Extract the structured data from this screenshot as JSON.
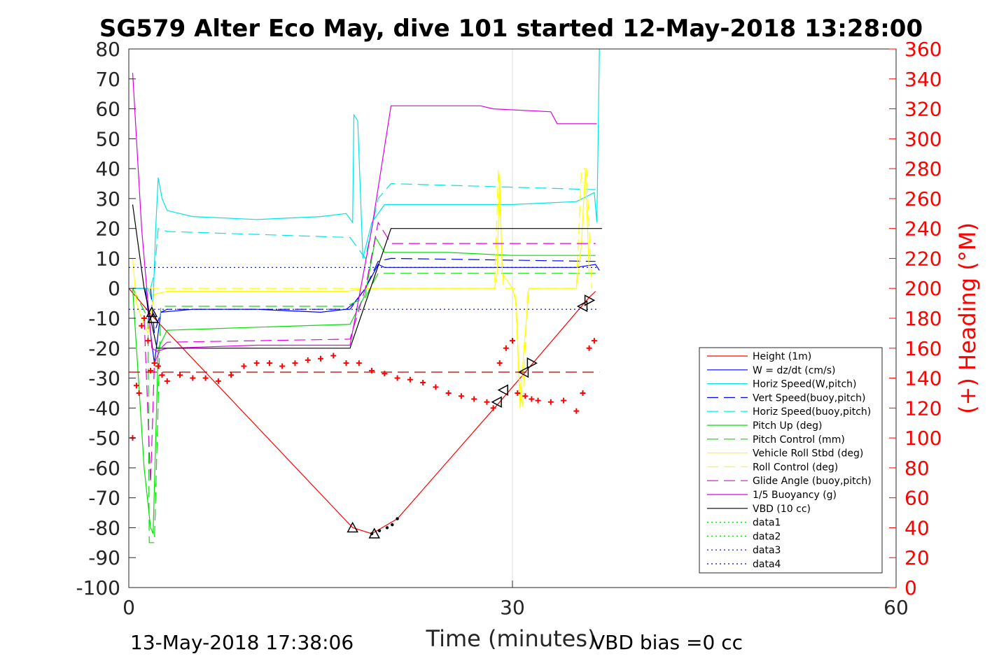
{
  "chart_data": {
    "type": "line",
    "title": "SG579 Alter Eco May, dive 101 started 12-May-2018 13:28:00",
    "xlabel": "Time (minutes)",
    "ylabel": "",
    "y2label": "(+) Heading (°M)",
    "xlim": [
      0,
      60
    ],
    "ylim": [
      -100,
      80
    ],
    "y2lim": [
      0,
      360
    ],
    "xticks": [
      "0",
      "30",
      "60"
    ],
    "yticks": [
      "80",
      "70",
      "60",
      "50",
      "40",
      "30",
      "20",
      "10",
      "0",
      "-10",
      "-20",
      "-30",
      "-40",
      "-50",
      "-60",
      "-70",
      "-80",
      "-90",
      "-100"
    ],
    "y2ticks": [
      "360",
      "340",
      "320",
      "300",
      "280",
      "260",
      "240",
      "220",
      "200",
      "180",
      "160",
      "140",
      "120",
      "100",
      "80",
      "60",
      "40",
      "20",
      "0"
    ],
    "grid": "x-only",
    "legend_position": "bottom-right",
    "footer_left": "13-May-2018 17:38:06",
    "footer_right": "VBD bias =0 cc",
    "series": [
      {
        "name": "Height (1m)",
        "color": "#ff0000",
        "style": "solid",
        "x": [
          0,
          2,
          17.5,
          19,
          21,
          29,
          36,
          36.5
        ],
        "y": [
          0,
          -10,
          -80,
          -82,
          -77,
          -38,
          -3,
          -1
        ]
      },
      {
        "name": "W = dz/dt (cm/s)",
        "color": "#0000ff",
        "style": "solid",
        "x": [
          0.3,
          1.3,
          1.7,
          2,
          2.5,
          5,
          10,
          15,
          17,
          17.6,
          18.5,
          19.5,
          20,
          25,
          30,
          35,
          36.5,
          36.8
        ],
        "y": [
          0,
          0,
          -15,
          -25,
          -8,
          -7,
          -7,
          -8,
          -7,
          -5,
          0,
          8,
          7,
          7,
          7,
          7,
          8,
          6
        ]
      },
      {
        "name": "Horiz Speed(W,pitch)",
        "color": "#00e5e5",
        "style": "solid",
        "x": [
          0.3,
          1.5,
          1.9,
          2.1,
          2.3,
          2.6,
          3,
          5,
          10,
          15,
          17,
          17.5,
          17.6,
          17.9,
          18.3,
          19,
          20,
          25,
          30,
          35,
          36.4,
          36.6,
          36.7,
          36.8
        ],
        "y": [
          0,
          0,
          -5,
          20,
          37,
          30,
          26,
          24,
          23,
          24,
          25,
          22,
          58,
          56,
          10,
          22,
          28,
          28,
          28,
          29,
          32,
          22,
          50,
          80
        ]
      },
      {
        "name": "Vert Speed(buoy,pitch)",
        "color": "#0000ff",
        "style": "dashed",
        "x": [
          1.7,
          2,
          2.5,
          3,
          17.3,
          18.5,
          19.5,
          20.5,
          36.5
        ],
        "y": [
          0,
          -15,
          -8,
          -7,
          -7,
          0,
          9,
          10,
          9
        ]
      },
      {
        "name": "Horiz Speed(buoy,pitch)",
        "color": "#00e5e5",
        "style": "dashed",
        "x": [
          1.7,
          2,
          2.3,
          3,
          17.3,
          18.5,
          19.5,
          20.5,
          36.5
        ],
        "y": [
          0,
          5,
          20,
          19,
          17,
          10,
          30,
          35,
          33
        ]
      },
      {
        "name": "Pitch Up (deg)",
        "color": "#00e000",
        "style": "solid",
        "x": [
          0.3,
          1.2,
          1.7,
          1.9,
          2.3,
          3,
          10,
          17.3,
          18.5,
          19.3,
          20,
          25,
          30,
          36.5
        ],
        "y": [
          0,
          -60,
          -80,
          -82,
          -20,
          -14,
          -13,
          -12,
          -2,
          17,
          12,
          12,
          11,
          11
        ]
      },
      {
        "name": "Pitch Control (mm)",
        "color": "#00e000",
        "style": "dashed",
        "x": [
          0.3,
          1.5,
          1.6,
          2,
          2.5,
          17,
          18.5,
          19.5,
          20.5,
          36.5
        ],
        "y": [
          0,
          -10,
          -85,
          -85,
          -6,
          -6,
          -3,
          5,
          5,
          5
        ]
      },
      {
        "name": "Vehicle Roll Stbd (deg)",
        "color": "#ffff00",
        "style": "solid",
        "x": [
          0.3,
          0.6,
          1,
          1.5,
          2,
          3,
          10,
          17,
          19,
          20,
          28.6,
          28.8,
          29,
          29.2,
          30,
          30.3,
          30.6,
          30.9,
          31.3,
          35,
          35.4,
          35.7,
          36
        ],
        "y": [
          10,
          -5,
          -10,
          -15,
          -2,
          -1,
          -1,
          -1,
          0,
          0,
          0,
          5,
          38,
          5,
          0,
          -5,
          -40,
          -20,
          0,
          0,
          15,
          40,
          5
        ]
      },
      {
        "name": "Roll Control (deg)",
        "color": "#ffff00",
        "style": "dashed",
        "x": [
          1.5,
          2,
          17,
          20,
          28.6,
          28.9,
          29.3,
          30.2,
          30.5,
          30.8,
          31.2,
          35,
          35.4,
          35.8,
          36.2
        ],
        "y": [
          0,
          0,
          0,
          0,
          0,
          40,
          0,
          0,
          -30,
          -40,
          0,
          0,
          40,
          40,
          0
        ]
      },
      {
        "name": "Glide Angle (buoy,pitch)",
        "color": "#e000e0",
        "style": "dashed",
        "x": [
          1.2,
          1.7,
          2,
          2.5,
          3,
          17.3,
          18.5,
          19.5,
          20.5,
          36.5
        ],
        "y": [
          -10,
          -65,
          -25,
          -20,
          -18,
          -17,
          0,
          22,
          15,
          15
        ]
      },
      {
        "name": "1/5 Buoyancy (g)",
        "color": "#e000e0",
        "style": "solid",
        "x": [
          0.3,
          1,
          1.8,
          2.2,
          3,
          10,
          17.3,
          19,
          20.5,
          27.5,
          28.5,
          33,
          33.5,
          34,
          36.6
        ],
        "y": [
          72,
          20,
          -20,
          -21,
          -20,
          -19,
          -19,
          20,
          61,
          61,
          60,
          59,
          55,
          55,
          55
        ]
      },
      {
        "name": "VBD (10 cc)",
        "color": "#000000",
        "style": "solid",
        "x": [
          0.3,
          1.2,
          2.2,
          17.3,
          20.5,
          37
        ],
        "y": [
          28,
          0,
          -20,
          -20,
          20,
          20
        ]
      },
      {
        "name": "data1",
        "color": "#00e000",
        "style": "dotted",
        "x": [],
        "y": []
      },
      {
        "name": "data2",
        "color": "#00e000",
        "style": "dotted",
        "x": [],
        "y": []
      },
      {
        "name": "data3",
        "color": "#0000b0",
        "style": "dotted",
        "x": [
          0,
          36.8
        ],
        "y": [
          7,
          7
        ]
      },
      {
        "name": "data4",
        "color": "#0000b0",
        "style": "dotted",
        "x": [
          0,
          36.8
        ],
        "y": [
          -7,
          -7
        ]
      }
    ],
    "heading_series": {
      "color": "#ff0000",
      "style": "plus-markers",
      "axis": "right",
      "x": [
        0.3,
        0.6,
        0.8,
        1,
        1.2,
        1.5,
        1.7,
        2,
        2.3,
        2.6,
        3,
        4,
        5,
        6,
        7,
        8,
        9,
        10,
        11,
        12,
        13,
        14,
        15,
        16,
        17,
        18,
        19,
        20,
        21,
        22,
        23,
        24,
        25,
        26,
        27,
        28,
        28.5,
        29,
        29.5,
        30,
        30.4,
        31,
        31.5,
        32,
        33,
        34,
        35,
        35.5,
        36,
        36.4
      ],
      "y": [
        100,
        135,
        130,
        175,
        180,
        165,
        145,
        150,
        148,
        142,
        138,
        142,
        140,
        140,
        138,
        142,
        148,
        150,
        150,
        148,
        150,
        152,
        153,
        155,
        150,
        150,
        145,
        143,
        140,
        139,
        137,
        134,
        130,
        128,
        126,
        124,
        120,
        150,
        160,
        165,
        130,
        128,
        126,
        125,
        124,
        125,
        118,
        130,
        160,
        165
      ]
    },
    "heading_target": {
      "color": "#b00000",
      "style": "dashed",
      "axis": "right",
      "x": [
        0,
        36.8
      ],
      "y": [
        144,
        144
      ]
    },
    "markers": {
      "triangles_up": {
        "x": [
          1.8,
          1.9,
          17.5,
          19.2
        ],
        "y": [
          -8,
          -10,
          -80,
          -82
        ]
      },
      "triangles_left": {
        "x": [
          28.8,
          29.3,
          30.9,
          35.5
        ],
        "y": [
          -38,
          -34,
          -28,
          -6
        ]
      },
      "triangles_right": {
        "x": [
          31.5,
          36
        ],
        "y": [
          -25,
          -4
        ]
      },
      "dots": {
        "x": [
          19,
          19.6,
          20.2,
          20.6,
          21
        ],
        "y": [
          -82,
          -81,
          -80,
          -79,
          -77
        ]
      }
    }
  }
}
